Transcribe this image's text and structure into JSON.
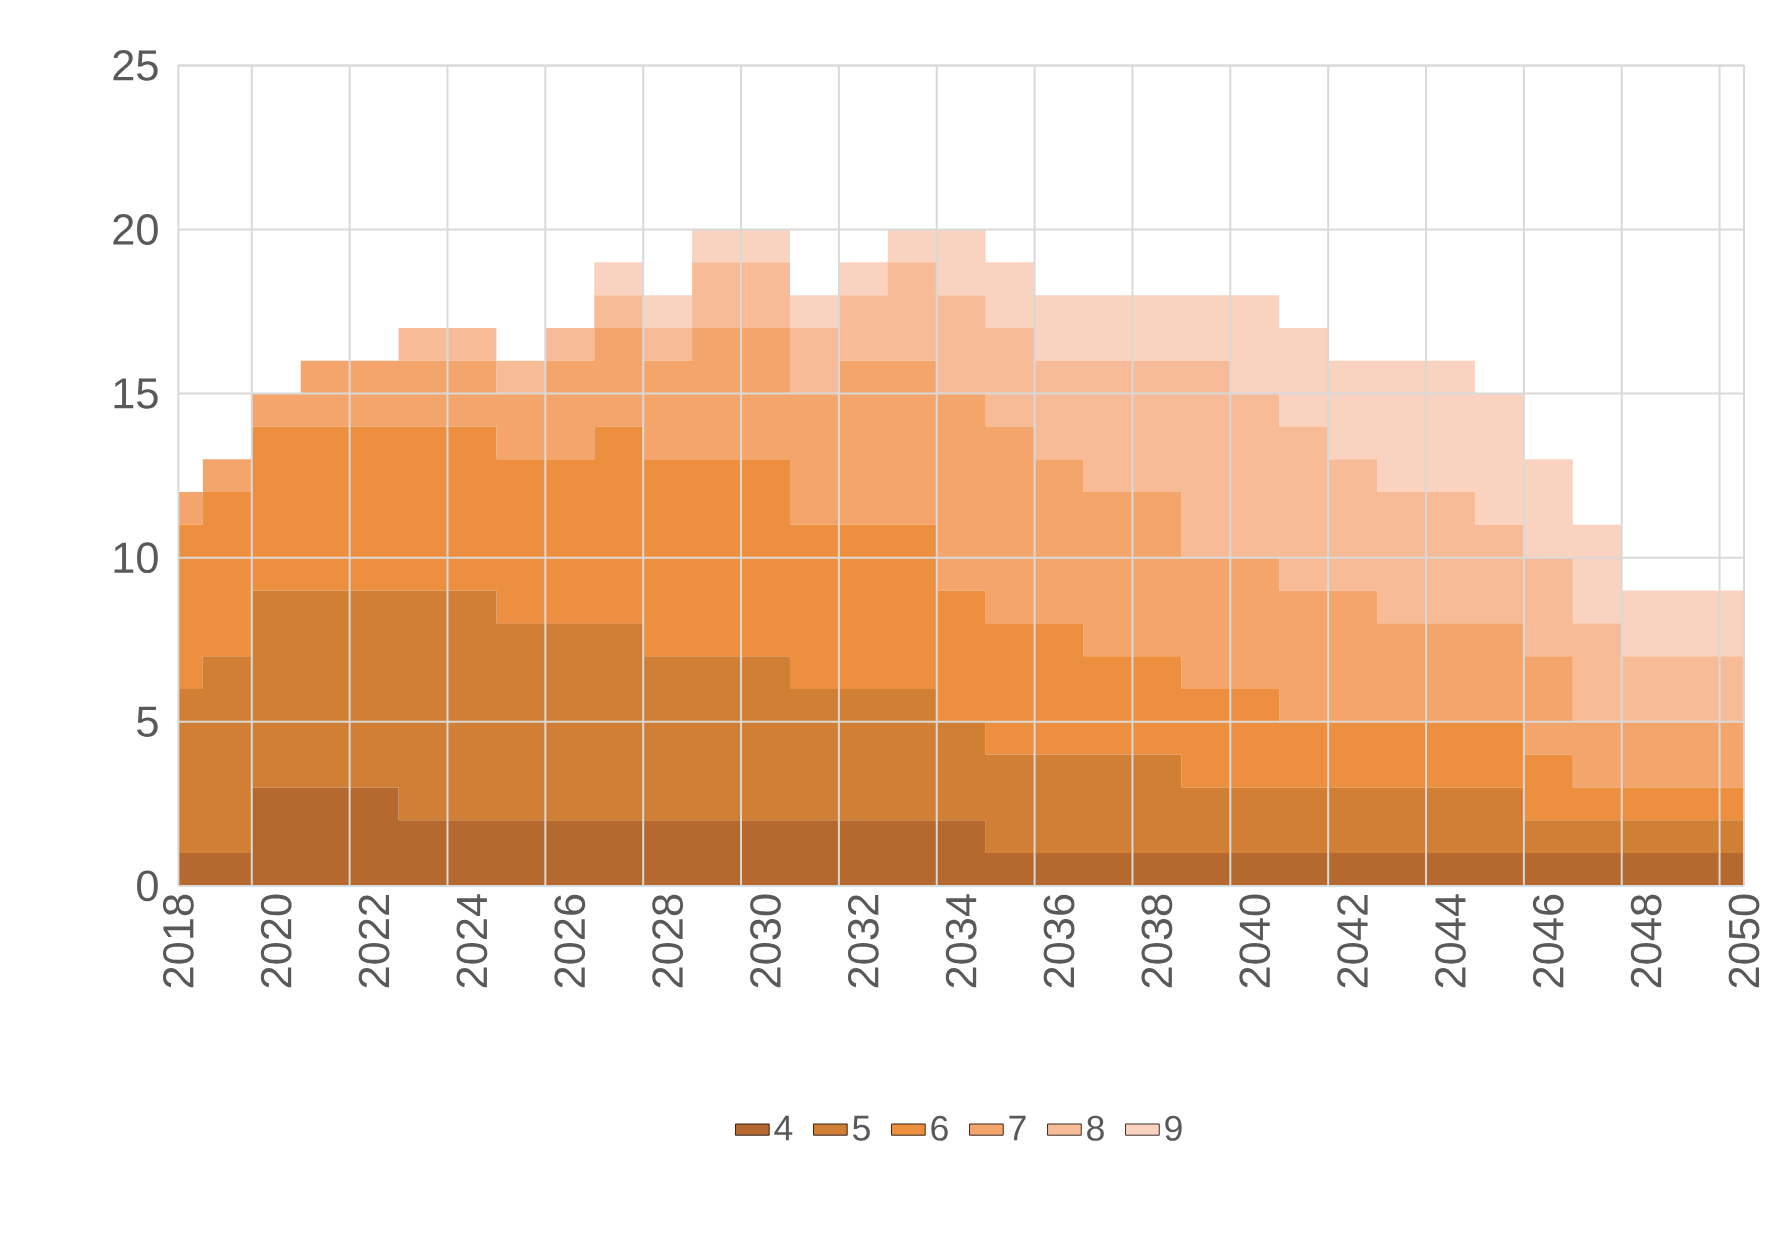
{
  "chart_data": {
    "type": "area",
    "stacked": true,
    "categories": [
      "2018",
      null,
      "2020",
      null,
      "2022",
      null,
      "2024",
      null,
      "2026",
      null,
      "2028",
      null,
      "2030",
      null,
      "2032",
      null,
      "2034",
      null,
      "2036",
      null,
      "2038",
      null,
      "2040",
      null,
      "2042",
      null,
      "2044",
      null,
      "2046",
      null,
      "2048",
      null,
      "2050"
    ],
    "series": [
      {
        "name": "4",
        "color": "#b5692e",
        "values": [
          1,
          1,
          3,
          3,
          3,
          2,
          2,
          2,
          2,
          2,
          2,
          2,
          2,
          2,
          2,
          2,
          2,
          1,
          1,
          1,
          1,
          1,
          1,
          1,
          1,
          1,
          1,
          1,
          1,
          1,
          1,
          1,
          1
        ]
      },
      {
        "name": "5",
        "color": "#d27f36",
        "values": [
          5,
          6,
          6,
          6,
          6,
          7,
          7,
          6,
          6,
          6,
          5,
          5,
          5,
          4,
          4,
          4,
          3,
          3,
          3,
          3,
          3,
          2,
          2,
          2,
          2,
          2,
          2,
          2,
          1,
          1,
          1,
          1,
          1
        ]
      },
      {
        "name": "6",
        "color": "#ec8f3e",
        "values": [
          5,
          5,
          5,
          5,
          5,
          5,
          5,
          5,
          5,
          6,
          6,
          6,
          6,
          5,
          5,
          5,
          4,
          4,
          4,
          3,
          3,
          3,
          3,
          2,
          2,
          2,
          2,
          2,
          2,
          1,
          1,
          1,
          1
        ]
      },
      {
        "name": "7",
        "color": "#f4a56c",
        "values": [
          1,
          1,
          1,
          2,
          2,
          2,
          2,
          2,
          3,
          3,
          3,
          4,
          4,
          4,
          5,
          5,
          6,
          6,
          5,
          5,
          5,
          4,
          4,
          4,
          4,
          3,
          3,
          3,
          3,
          2,
          2,
          2,
          2
        ]
      },
      {
        "name": "8",
        "color": "#f7bc97",
        "values": [
          0,
          0,
          0,
          0,
          0,
          1,
          1,
          1,
          1,
          1,
          1,
          2,
          2,
          2,
          2,
          3,
          3,
          3,
          3,
          4,
          4,
          6,
          5,
          5,
          4,
          4,
          4,
          3,
          3,
          3,
          2,
          2,
          2
        ]
      },
      {
        "name": "9",
        "color": "#f9d3bf",
        "values": [
          0,
          0,
          0,
          0,
          0,
          0,
          0,
          0,
          0,
          1,
          1,
          1,
          1,
          1,
          1,
          1,
          2,
          2,
          2,
          2,
          2,
          2,
          3,
          3,
          3,
          4,
          4,
          4,
          3,
          3,
          2,
          2,
          2
        ]
      }
    ],
    "ylim": [
      0,
      25
    ],
    "yticks": [
      0,
      5,
      10,
      15,
      20,
      25
    ],
    "grid": true,
    "legend": "bottom"
  }
}
